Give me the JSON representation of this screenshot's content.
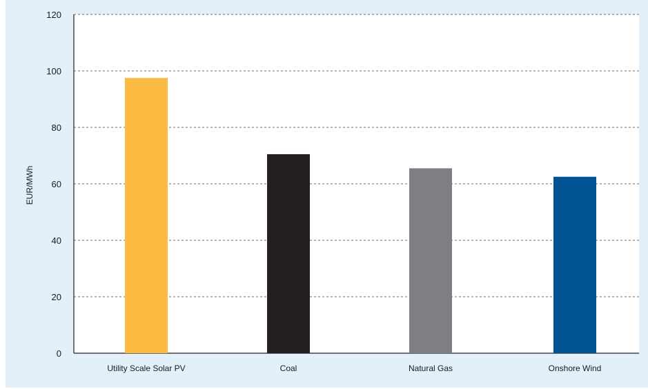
{
  "chart_data": {
    "type": "bar",
    "categories": [
      "Utility Scale Solar PV",
      "Coal",
      "Natural Gas",
      "Onshore Wind"
    ],
    "values": [
      97.5,
      70.5,
      65.5,
      62.5
    ],
    "colors": [
      "#fbbb42",
      "#231f20",
      "#7e7f82",
      "#005494"
    ],
    "title": "",
    "xlabel": "",
    "ylabel": "EUR/MWh",
    "ylim": [
      0,
      120
    ],
    "yticks": [
      0,
      20,
      40,
      60,
      80,
      100,
      120
    ],
    "grid": true,
    "grid_style": "dashed",
    "background_color": "#e3eff9",
    "plot_background_color": "#ffffff"
  }
}
